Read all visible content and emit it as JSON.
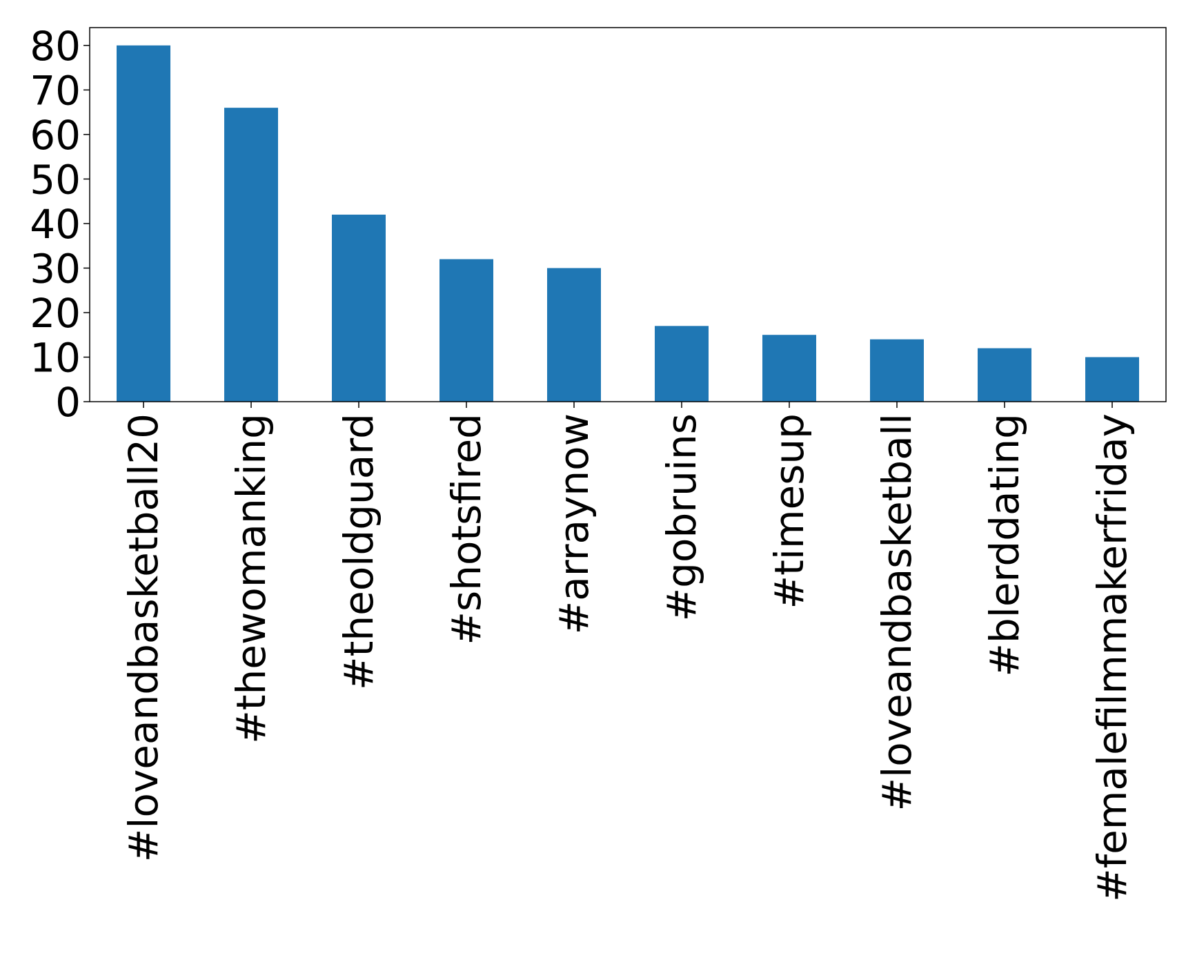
{
  "chart_data": {
    "type": "bar",
    "title": "",
    "xlabel": "",
    "ylabel": "",
    "categories": [
      "#loveandbasketball20",
      "#thewomanking",
      "#theoldguard",
      "#shotsfired",
      "#arraynow",
      "#gobruins",
      "#timesup",
      "#loveandbasketball",
      "#blerddating",
      "#femalefilmmakerfriday"
    ],
    "values": [
      80,
      66,
      42,
      32,
      30,
      17,
      15,
      14,
      12,
      10
    ],
    "ylim": [
      0,
      84
    ],
    "yticks": [
      "0",
      "10",
      "20",
      "30",
      "40",
      "50",
      "60",
      "70",
      "80"
    ],
    "bar_color": "#1f77b4",
    "grid": false,
    "legend": "none"
  }
}
